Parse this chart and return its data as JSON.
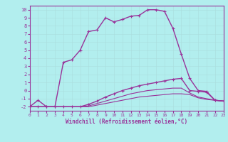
{
  "xlabel": "Windchill (Refroidissement éolien,°C)",
  "ylabel": "",
  "bg_color": "#b2eeee",
  "line_color": "#993399",
  "grid_color": "#aadddd",
  "xlim": [
    0,
    23
  ],
  "ylim": [
    -2.5,
    10.5
  ],
  "yticks": [
    10,
    9,
    8,
    7,
    6,
    5,
    4,
    3,
    2,
    1,
    0,
    -1,
    -2
  ],
  "xticks": [
    0,
    1,
    2,
    3,
    4,
    5,
    6,
    7,
    8,
    9,
    10,
    11,
    12,
    13,
    14,
    15,
    16,
    17,
    18,
    19,
    20,
    21,
    22,
    23
  ],
  "series": [
    {
      "x": [
        0,
        1,
        2,
        3,
        4,
        5,
        6,
        7,
        8,
        9,
        10,
        11,
        12,
        13,
        14,
        15,
        16,
        17,
        18,
        19,
        20,
        21,
        22,
        23
      ],
      "y": [
        -2,
        -1.2,
        -2,
        -2,
        3.5,
        3.8,
        5.0,
        7.3,
        7.5,
        9.0,
        8.5,
        8.8,
        9.2,
        9.3,
        10.0,
        10.0,
        9.8,
        7.7,
        4.5,
        1.5,
        0.0,
        -0.1,
        -1.2,
        -1.3
      ],
      "marker": "+",
      "lw": 1.0
    },
    {
      "x": [
        0,
        1,
        2,
        3,
        4,
        5,
        6,
        7,
        8,
        9,
        10,
        11,
        12,
        13,
        14,
        15,
        16,
        17,
        18,
        19,
        20,
        21,
        22,
        23
      ],
      "y": [
        -2,
        -2,
        -2,
        -2,
        -2,
        -2,
        -2,
        -1.7,
        -1.3,
        -0.8,
        -0.4,
        0.0,
        0.3,
        0.6,
        0.8,
        1.0,
        1.2,
        1.4,
        1.5,
        0.0,
        -0.1,
        -0.2,
        -1.2,
        -1.3
      ],
      "marker": "+",
      "lw": 1.0
    },
    {
      "x": [
        0,
        1,
        2,
        3,
        4,
        5,
        6,
        7,
        8,
        9,
        10,
        11,
        12,
        13,
        14,
        15,
        16,
        17,
        18,
        19,
        20,
        21,
        22,
        23
      ],
      "y": [
        -2,
        -2,
        -2,
        -2,
        -2,
        -2,
        -2,
        -1.9,
        -1.6,
        -1.3,
        -1.0,
        -0.7,
        -0.4,
        -0.2,
        0.0,
        0.1,
        0.2,
        0.3,
        0.3,
        -0.3,
        -0.8,
        -1.0,
        -1.2,
        -1.3
      ],
      "marker": null,
      "lw": 0.8
    },
    {
      "x": [
        0,
        1,
        2,
        3,
        4,
        5,
        6,
        7,
        8,
        9,
        10,
        11,
        12,
        13,
        14,
        15,
        16,
        17,
        18,
        19,
        20,
        21,
        22,
        23
      ],
      "y": [
        -2,
        -2,
        -2,
        -2,
        -2,
        -2,
        -2,
        -2,
        -1.8,
        -1.6,
        -1.4,
        -1.2,
        -1.0,
        -0.8,
        -0.7,
        -0.6,
        -0.5,
        -0.4,
        -0.4,
        -0.5,
        -0.9,
        -1.1,
        -1.2,
        -1.3
      ],
      "marker": null,
      "lw": 0.8
    }
  ]
}
